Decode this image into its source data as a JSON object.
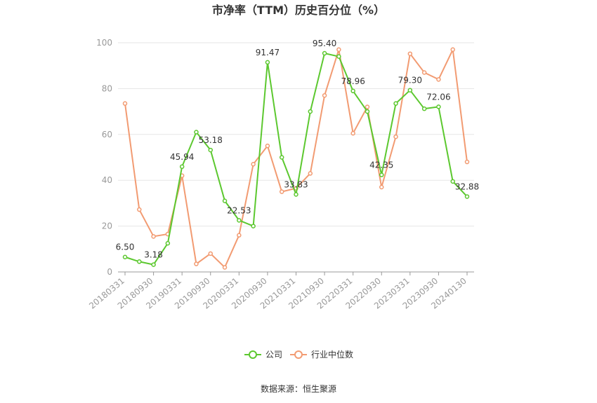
{
  "chart_data": {
    "type": "line",
    "title": "市净率（TTM）历史百分位（%）",
    "ylim": [
      0,
      100
    ],
    "y_ticks": [
      0,
      20,
      40,
      60,
      80,
      100
    ],
    "x_tick_labels": [
      "20180331",
      "20180930",
      "20190331",
      "20190930",
      "20200331",
      "20200930",
      "20210331",
      "20210930",
      "20220331",
      "20220930",
      "20230331",
      "20230930",
      "20240130"
    ],
    "x": [
      "20180331",
      "20180630",
      "20180930",
      "20181231",
      "20190331",
      "20190630",
      "20190930",
      "20191231",
      "20200331",
      "20200630",
      "20200930",
      "20201231",
      "20210331",
      "20210630",
      "20210930",
      "20211231",
      "20220331",
      "20220630",
      "20220930",
      "20221231",
      "20230331",
      "20230630",
      "20230930",
      "20231231",
      "20240130"
    ],
    "series": [
      {
        "name": "公司",
        "color": "#5cc82f",
        "values": [
          6.5,
          4.5,
          3.18,
          12.5,
          45.94,
          61.0,
          53.18,
          31.0,
          22.53,
          20.0,
          91.47,
          50.0,
          33.83,
          70.0,
          95.4,
          94.0,
          78.96,
          70.0,
          42.35,
          73.5,
          79.3,
          71.2,
          72.06,
          39.5,
          32.88
        ]
      },
      {
        "name": "行业中位数",
        "color": "#f29b72",
        "values": [
          73.5,
          27.2,
          15.5,
          16.5,
          42.0,
          3.5,
          8.0,
          2.0,
          16.0,
          47.0,
          55.0,
          35.0,
          36.5,
          43.0,
          77.0,
          97.0,
          60.5,
          72.0,
          37.0,
          59.0,
          95.2,
          87.0,
          84.0,
          97.0,
          48.0
        ]
      }
    ],
    "labels": [
      {
        "index": 0,
        "text": "6.50"
      },
      {
        "index": 2,
        "text": "3.18"
      },
      {
        "index": 4,
        "text": "45.94"
      },
      {
        "index": 6,
        "text": "53.18"
      },
      {
        "index": 8,
        "text": "22.53"
      },
      {
        "index": 10,
        "text": "91.47"
      },
      {
        "index": 12,
        "text": "33.83"
      },
      {
        "index": 14,
        "text": "95.40"
      },
      {
        "index": 16,
        "text": "78.96"
      },
      {
        "index": 18,
        "text": "42.35"
      },
      {
        "index": 20,
        "text": "79.30"
      },
      {
        "index": 22,
        "text": "72.06"
      },
      {
        "index": 24,
        "text": "32.88"
      }
    ],
    "legend": [
      "公司",
      "行业中位数"
    ],
    "legend_position": "bottom-center",
    "grid": true
  },
  "source": "数据来源：恒生聚源"
}
